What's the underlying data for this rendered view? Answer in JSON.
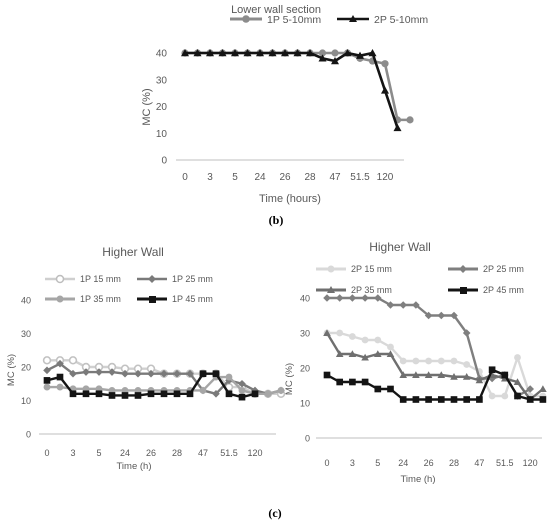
{
  "panel_labels": {
    "b": "(b)",
    "c": "(c)"
  },
  "chart_data": [
    {
      "id": "b",
      "type": "line",
      "title": "Lower wall section",
      "xlabel": "Time (hours)",
      "ylabel": "MC (%)",
      "ylim": [
        0,
        40
      ],
      "yticks": [
        0,
        10,
        20,
        30,
        40
      ],
      "grid": false,
      "legend_position": "top",
      "tick_labels": [
        "0",
        "3",
        "5",
        "24",
        "26",
        "28",
        "47",
        "51.5",
        "120"
      ],
      "tick_index": [
        0,
        2,
        4,
        6,
        8,
        10,
        12,
        14,
        16
      ],
      "series": [
        {
          "name": "1P 5-10mm",
          "color": "#8c8c8c",
          "marker": "circle",
          "values": [
            40,
            40,
            40,
            40,
            40,
            40,
            40,
            40,
            40,
            40,
            40,
            40,
            40,
            40,
            38,
            37,
            36,
            15,
            15
          ]
        },
        {
          "name": "2P 5-10mm",
          "color": "#141414",
          "marker": "triangle",
          "values": [
            40,
            40,
            40,
            40,
            40,
            40,
            40,
            40,
            40,
            40,
            40,
            38,
            37,
            40,
            39,
            40,
            26,
            12
          ]
        }
      ]
    },
    {
      "id": "c1",
      "type": "line",
      "title": "Higher Wall",
      "xlabel": "Time (h)",
      "ylabel": "MC (%)",
      "ylim": [
        0,
        40
      ],
      "yticks": [
        0,
        10,
        20,
        30,
        40
      ],
      "grid": false,
      "legend_position": "top",
      "tick_labels": [
        "0",
        "3",
        "5",
        "24",
        "26",
        "28",
        "47",
        "51.5",
        "120"
      ],
      "tick_index": [
        0,
        2,
        4,
        6,
        8,
        10,
        12,
        14,
        16
      ],
      "series": [
        {
          "name": "1P 15 mm",
          "color": "#cfcfcf",
          "marker": "circle-open",
          "values": [
            22,
            22,
            22,
            20,
            20,
            20,
            19.5,
            19.5,
            19.5,
            18,
            18,
            18,
            18,
            18,
            14,
            14,
            12,
            12,
            12
          ]
        },
        {
          "name": "1P 25 mm",
          "color": "#7a7a7a",
          "marker": "diamond",
          "values": [
            19,
            21,
            18,
            18.5,
            18.5,
            18.5,
            18,
            18,
            18,
            18,
            18,
            18,
            13,
            12,
            16,
            15,
            13,
            12,
            13
          ]
        },
        {
          "name": "1P 35 mm",
          "color": "#a6a6a6",
          "marker": "circle",
          "values": [
            14,
            14,
            13.5,
            13.5,
            13.5,
            13,
            13,
            13,
            13,
            13,
            13,
            13,
            13,
            17,
            17,
            13,
            12,
            12,
            13
          ]
        },
        {
          "name": "1P 45 mm",
          "color": "#141414",
          "marker": "square",
          "values": [
            16,
            17,
            12,
            12,
            12,
            11.5,
            11.5,
            11.5,
            12,
            12,
            12,
            12,
            18,
            18,
            12,
            11,
            12
          ]
        }
      ]
    },
    {
      "id": "c2",
      "type": "line",
      "title": "Higher Wall",
      "xlabel": "Time (h)",
      "ylabel": "MC (%)",
      "ylim": [
        0,
        40
      ],
      "yticks": [
        0,
        10,
        20,
        30,
        40
      ],
      "grid": false,
      "legend_position": "top",
      "tick_labels": [
        "0",
        "3",
        "5",
        "24",
        "26",
        "28",
        "47",
        "51.5",
        "120"
      ],
      "tick_index": [
        0,
        2,
        4,
        6,
        8,
        10,
        12,
        14,
        16
      ],
      "series": [
        {
          "name": "2P 15 mm",
          "color": "#d9d9d9",
          "marker": "circle",
          "values": [
            30,
            30,
            29,
            28,
            28,
            26,
            22,
            22,
            22,
            22,
            22,
            21,
            19,
            12,
            12,
            23,
            12,
            12
          ]
        },
        {
          "name": "2P 25 mm",
          "color": "#7f7f7f",
          "marker": "diamond",
          "values": [
            40,
            40,
            40,
            40,
            40,
            38,
            38,
            38,
            35,
            35,
            35,
            30,
            17,
            17,
            18,
            12,
            14
          ]
        },
        {
          "name": "2P 35 mm",
          "color": "#6f6f6f",
          "marker": "triangle",
          "values": [
            30,
            24,
            24,
            23,
            24,
            24,
            18,
            18,
            18,
            18,
            17.5,
            17.5,
            16.5,
            18,
            17,
            16,
            11,
            14
          ]
        },
        {
          "name": "2P 45 mm",
          "color": "#141414",
          "marker": "square",
          "values": [
            18,
            16,
            16,
            16,
            14,
            14,
            11,
            11,
            11,
            11,
            11,
            11,
            11,
            19.5,
            18,
            12,
            11,
            11
          ]
        }
      ]
    }
  ]
}
